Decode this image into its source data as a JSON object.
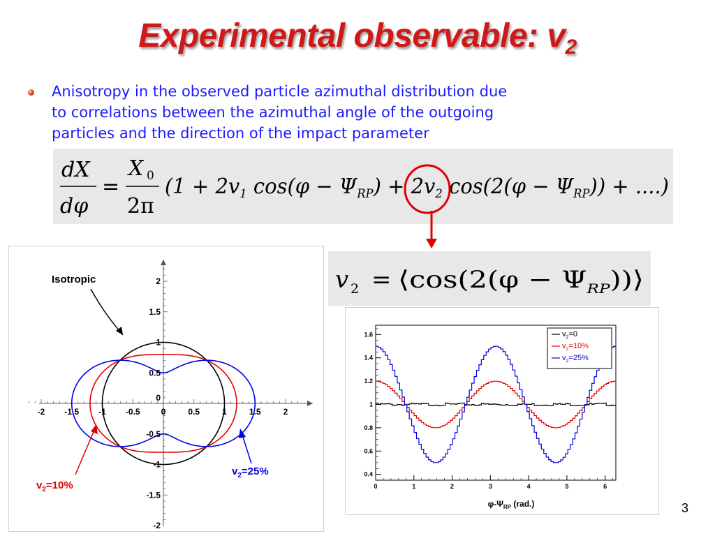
{
  "slide": {
    "title": "Experimental observable: v",
    "title_sub": "2",
    "bullet": {
      "lines": [
        "Anisotropy in the observed particle azimuthal distribution due",
        "to correlations between the azimuthal angle of the outgoing",
        "particles and the direction of the impact parameter"
      ]
    },
    "slide_number": "3"
  },
  "formula1": {
    "lhs_num": "dX",
    "lhs_den": "dφ",
    "eq": "=",
    "rhs_num": "X",
    "rhs_num_sub": "0",
    "rhs_den": "2π",
    "terms": [
      "(1 + 2v",
      "1",
      " cos(φ − Ψ",
      "RP",
      ") + 2v",
      "2",
      " cos(2(φ − Ψ",
      "RP",
      ")) + ....)"
    ]
  },
  "formula2": {
    "lhs": "v",
    "lhs_sub": "2",
    "eq": "=",
    "rhs_pre": "⟨cos(2(φ − Ψ",
    "rhs_sub": "RP",
    "rhs_post": "))⟩"
  },
  "left_plot": {
    "x_ticks": [
      "-2",
      "-1.5",
      "-1",
      "-0.5",
      "0",
      "0.5",
      "1",
      "1.5",
      "2"
    ],
    "y_ticks": [
      "2",
      "1.5",
      "1",
      "0.5",
      "-0.5",
      "-1",
      "-1.5",
      "-2"
    ],
    "y_zero_label": "0",
    "labels": {
      "isotropic": "Isotropic",
      "v2_10": "v",
      "v2_10_sub": "2",
      "v2_10_val": "=10%",
      "v2_25": "v",
      "v2_25_sub": "2",
      "v2_25_val": "=25%"
    },
    "colors": {
      "isotropic": "#000000",
      "v2_10": "#e00000",
      "v2_25": "#0000e0"
    }
  },
  "chart_data": {
    "type": "line",
    "xlabel": "φ-Ψ",
    "xlabel_sub": "RP",
    "xlabel_unit": " (rad.)",
    "ylabel": "",
    "xlim": [
      0,
      6.28
    ],
    "ylim": [
      0.35,
      1.68
    ],
    "x_ticks": [
      "0",
      "1",
      "2",
      "3",
      "4",
      "5",
      "6"
    ],
    "y_ticks": [
      "0.4",
      "0.6",
      "0.8",
      "1",
      "1.2",
      "1.4",
      "1.6"
    ],
    "legend_position": "top-right",
    "series": [
      {
        "name": "v",
        "name_sub": "2",
        "name_suffix": "=0",
        "v2": 0.0,
        "color": "#000000"
      },
      {
        "name": "v",
        "name_sub": "2",
        "name_suffix": "=10%",
        "v2": 0.1,
        "color": "#e00000"
      },
      {
        "name": "v",
        "name_sub": "2",
        "name_suffix": "=25%",
        "v2": 0.25,
        "color": "#0000e0"
      }
    ],
    "function": "1 + 2*v2*cos(2x)"
  }
}
